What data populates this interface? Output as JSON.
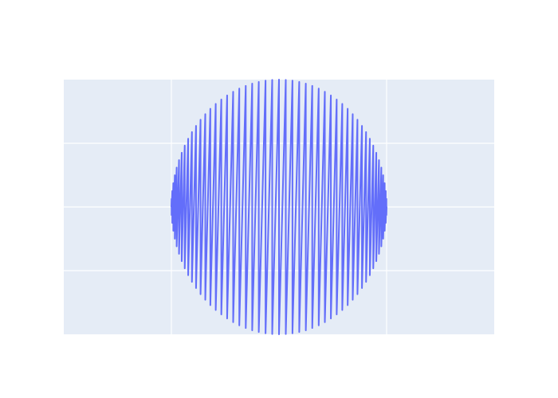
{
  "chart_data": {
    "type": "line",
    "title": "",
    "xlabel": "",
    "ylabel": "",
    "show_tick_labels": false,
    "grid": true,
    "legend": "none",
    "xlim": [
      -1,
      3
    ],
    "ylim": [
      -1,
      1
    ],
    "x_gridlines": [
      0,
      1,
      2
    ],
    "y_gridlines": [
      -0.5,
      0,
      0.5
    ],
    "series": [
      {
        "x": [
          0.0,
          0.0,
          0.002,
          0.002,
          0.008,
          0.008,
          0.018,
          0.018,
          0.032,
          0.032,
          0.049,
          0.049,
          0.071,
          0.071,
          0.096,
          0.096,
          0.124,
          0.124,
          0.156,
          0.156,
          0.191,
          0.191,
          0.229,
          0.229,
          0.271,
          0.271,
          0.315,
          0.315,
          0.362,
          0.362,
          0.412,
          0.412,
          0.464,
          0.464,
          0.518,
          0.518,
          0.574,
          0.574,
          0.631,
          0.631,
          0.691,
          0.691,
          0.751,
          0.751,
          0.812,
          0.812,
          0.875,
          0.875,
          0.937,
          0.937,
          1.0,
          1.0,
          1.063,
          1.063,
          1.125,
          1.125,
          1.188,
          1.188,
          1.249,
          1.249,
          1.309,
          1.309,
          1.369,
          1.369,
          1.426,
          1.426,
          1.482,
          1.482,
          1.536,
          1.536,
          1.588,
          1.588,
          1.638,
          1.638,
          1.685,
          1.685,
          1.729,
          1.729,
          1.771,
          1.771,
          1.809,
          1.809,
          1.844,
          1.844,
          1.876,
          1.876,
          1.904,
          1.904,
          1.929,
          1.929,
          1.951,
          1.951,
          1.968,
          1.968,
          1.982,
          1.982,
          1.992,
          1.992,
          1.998,
          1.998,
          2.0
        ],
        "y": [
          0.0,
          0.0,
          0.063,
          -0.063,
          0.125,
          -0.125,
          0.187,
          -0.187,
          0.249,
          -0.249,
          0.309,
          -0.309,
          0.368,
          -0.368,
          0.426,
          -0.426,
          0.482,
          -0.482,
          0.536,
          -0.536,
          0.588,
          -0.588,
          0.637,
          -0.637,
          0.685,
          -0.685,
          0.729,
          -0.729,
          0.771,
          -0.771,
          0.809,
          -0.809,
          0.844,
          -0.844,
          0.876,
          -0.876,
          0.905,
          -0.905,
          0.93,
          -0.93,
          0.951,
          -0.951,
          0.969,
          -0.969,
          0.982,
          -0.982,
          0.992,
          -0.992,
          0.998,
          -0.998,
          1.0,
          -1.0,
          0.998,
          -0.998,
          0.992,
          -0.992,
          0.982,
          -0.982,
          0.969,
          -0.969,
          0.951,
          -0.951,
          0.93,
          -0.93,
          0.905,
          -0.905,
          0.876,
          -0.876,
          0.844,
          -0.844,
          0.809,
          -0.809,
          0.771,
          -0.771,
          0.729,
          -0.729,
          0.685,
          -0.685,
          0.637,
          -0.637,
          0.588,
          -0.588,
          0.536,
          -0.536,
          0.482,
          -0.482,
          0.426,
          -0.426,
          0.368,
          -0.368,
          0.309,
          -0.309,
          0.249,
          -0.249,
          0.187,
          -0.187,
          0.125,
          -0.125,
          0.063,
          -0.063,
          0.0
        ]
      }
    ]
  },
  "colors": {
    "page_bg": "#ffffff",
    "plot_bg": "#e5ecf6",
    "grid": "#ffffff",
    "series_line": "#636efa"
  }
}
